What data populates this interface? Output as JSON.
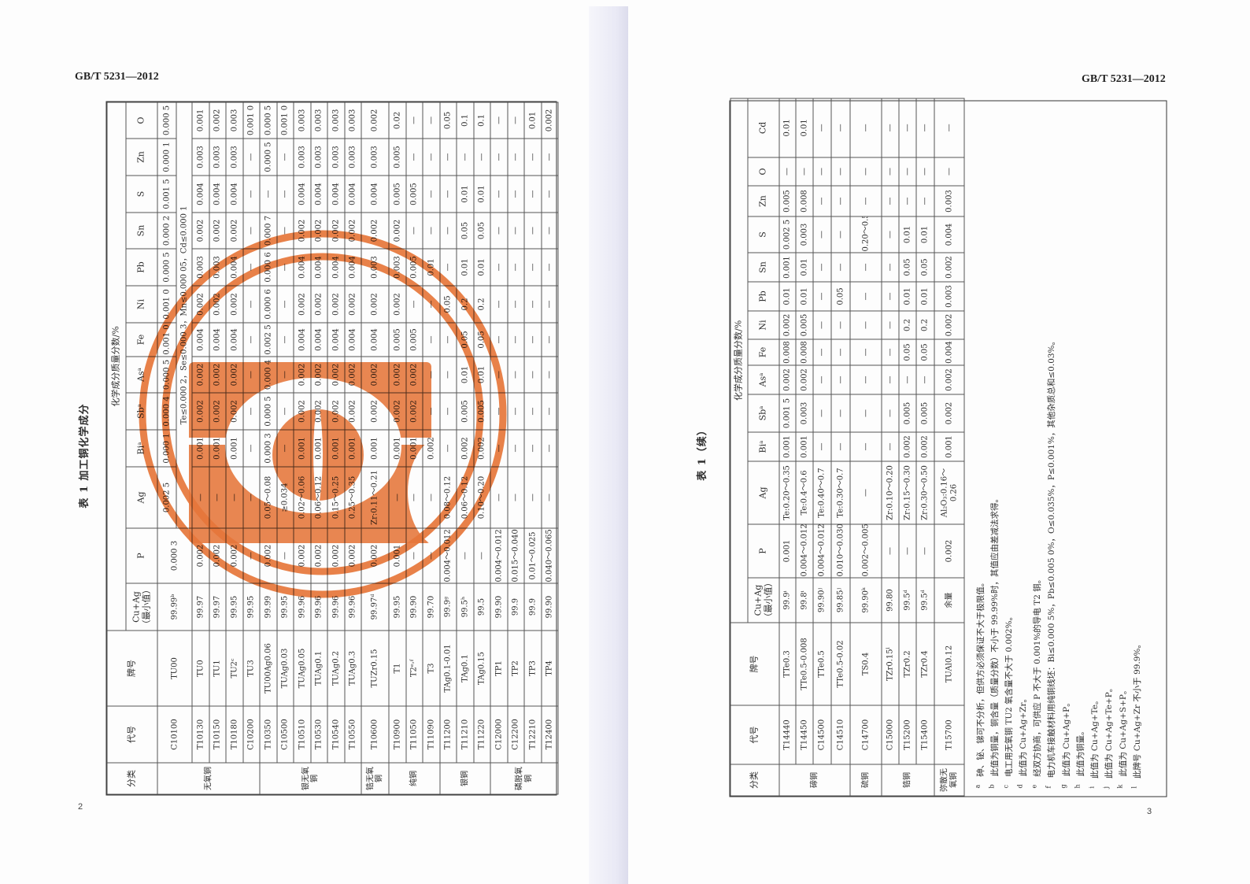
{
  "left_page": {
    "standard": "GB/T 5231—2012",
    "page_number": "2",
    "table_title": "表 1  加工铜化学成分"
  },
  "right_page": {
    "standard": "GB/T 5231—2012",
    "page_number": "3",
    "table_title": "表 1（续）"
  },
  "stamp": {
    "color": "#e8773a"
  },
  "left_table": {
    "headers": {
      "category": "分类",
      "code": "代号",
      "grade": "牌号",
      "cu_ag": "Cu+Ag（最小值）",
      "group": "化学成分质量分数/%",
      "elements": [
        "P",
        "Ag",
        "Biᵃ",
        "Sbᵃ",
        "Asᵃ",
        "Fe",
        "Ni",
        "Pb",
        "Sn",
        "S",
        "Zn",
        "O"
      ]
    },
    "groups": [
      {
        "category": "无氧铜",
        "rows": [
          [
            "C10100",
            "TU00",
            "99.99ᵇ",
            "0.000 3",
            "0.002 5",
            "0.000 1",
            "0.000 4",
            "0.000 5",
            "0.001 0",
            "0.001 0",
            "0.000 5",
            "0.000 2",
            "0.001 5",
            "0.000 1",
            "0.000 5"
          ],
          [
            "T10130",
            "TU0",
            "99.97",
            "0.002",
            "—",
            "0.001",
            "0.002",
            "0.002",
            "0.004",
            "0.002",
            "0.003",
            "0.002",
            "0.004",
            "0.003",
            "0.001"
          ],
          [
            "T10150",
            "TU1",
            "99.97",
            "0.002",
            "—",
            "0.001",
            "0.002",
            "0.002",
            "0.004",
            "0.002",
            "0.003",
            "0.002",
            "0.004",
            "0.003",
            "0.002"
          ],
          [
            "T10180",
            "TU2ᶜ",
            "99.95",
            "0.002",
            "—",
            "0.001",
            "0.002",
            "0.002",
            "0.004",
            "0.002",
            "0.004",
            "0.002",
            "0.004",
            "0.003",
            "0.003"
          ],
          [
            "C10200",
            "TU3",
            "99.95",
            "—",
            "—",
            "—",
            "—",
            "—",
            "—",
            "—",
            "—",
            "—",
            "—",
            "—",
            "0.001 0"
          ]
        ],
        "extra": "Te≤0.000 2，Se≤0.000 3，Mn≤0.000 05，Cd≤0.000 1"
      },
      {
        "category": "银无氧铜",
        "rows": [
          [
            "T10350",
            "TU00Ag0.06",
            "99.99",
            "0.002",
            "0.05～0.08",
            "0.000 3",
            "0.000 5",
            "0.000 4",
            "0.002 5",
            "0.000 6",
            "0.000 6",
            "0.000 7",
            "—",
            "0.000 5",
            "0.000 5"
          ],
          [
            "C10500",
            "TUAg0.03",
            "99.95",
            "—",
            "≥0.034",
            "—",
            "—",
            "—",
            "—",
            "—",
            "—",
            "—",
            "—",
            "—",
            "0.001 0"
          ],
          [
            "T10510",
            "TUAg0.05",
            "99.96",
            "0.002",
            "0.02～0.06",
            "0.001",
            "0.002",
            "0.002",
            "0.004",
            "0.002",
            "0.004",
            "0.002",
            "0.004",
            "0.003",
            "0.003"
          ],
          [
            "T10530",
            "TUAg0.1",
            "99.96",
            "0.002",
            "0.06～0.12",
            "0.001",
            "0.002",
            "0.002",
            "0.004",
            "0.002",
            "0.004",
            "0.002",
            "0.004",
            "0.003",
            "0.003"
          ],
          [
            "T10540",
            "TUAg0.2",
            "99.96",
            "0.002",
            "0.15～0.25",
            "0.001",
            "0.002",
            "0.002",
            "0.004",
            "0.002",
            "0.004",
            "0.002",
            "0.004",
            "0.003",
            "0.003"
          ],
          [
            "T10550",
            "TUAg0.3",
            "99.96",
            "0.002",
            "0.25～0.35",
            "0.001",
            "0.002",
            "0.002",
            "0.004",
            "0.002",
            "0.004",
            "0.002",
            "0.004",
            "0.003",
            "0.003"
          ]
        ]
      },
      {
        "category": "锆无氧铜",
        "rows": [
          [
            "T10600",
            "TUZr0.15",
            "99.97ᵈ",
            "0.002",
            "Zr:0.11～0.21",
            "0.001",
            "0.002",
            "0.002",
            "0.004",
            "0.002",
            "0.003",
            "0.002",
            "0.004",
            "0.003",
            "0.002"
          ]
        ]
      },
      {
        "category": "纯铜",
        "rows": [
          [
            "T10900",
            "T1",
            "99.95",
            "0.001",
            "—",
            "0.001",
            "0.002",
            "0.002",
            "0.005",
            "0.002",
            "0.003",
            "0.002",
            "0.005",
            "0.005",
            "0.02"
          ],
          [
            "T11050",
            "T2ᵉ˒ᶠ",
            "99.90",
            "—",
            "—",
            "0.001",
            "0.002",
            "0.002",
            "0.005",
            "—",
            "0.005",
            "—",
            "0.005",
            "—",
            "—"
          ],
          [
            "T11090",
            "T3",
            "99.70",
            "—",
            "—",
            "0.002",
            "—",
            "—",
            "—",
            "—",
            "0.01",
            "—",
            "—",
            "—",
            "—"
          ]
        ]
      },
      {
        "category": "银铜",
        "rows": [
          [
            "T11200",
            "TAg0.1-0.01",
            "99.9ᵍ",
            "0.004～0.012",
            "0.08～0.12",
            "—",
            "—",
            "—",
            "—",
            "0.05",
            "—",
            "—",
            "—",
            "—",
            "0.05"
          ],
          [
            "T11210",
            "TAg0.1",
            "99.5ʰ",
            "—",
            "0.06～0.12",
            "0.002",
            "0.005",
            "0.01",
            "0.05",
            "0.2",
            "0.01",
            "0.05",
            "0.01",
            "—",
            "0.1"
          ],
          [
            "T11220",
            "TAg0.15",
            "99.5",
            "—",
            "0.10～0.20",
            "0.002",
            "0.005",
            "0.01",
            "0.05",
            "0.2",
            "0.01",
            "0.05",
            "0.01",
            "—",
            "0.1"
          ]
        ]
      },
      {
        "category": "磷脱氧铜",
        "rows": [
          [
            "C12000",
            "TP1",
            "99.90",
            "0.004～0.012",
            "—",
            "—",
            "—",
            "—",
            "—",
            "—",
            "—",
            "—",
            "—",
            "—",
            "—"
          ],
          [
            "C12200",
            "TP2",
            "99.9",
            "0.015～0.040",
            "—",
            "—",
            "—",
            "—",
            "—",
            "—",
            "—",
            "—",
            "—",
            "—",
            "—"
          ],
          [
            "T12210",
            "TP3",
            "99.9",
            "0.01～0.025",
            "—",
            "—",
            "—",
            "—",
            "—",
            "—",
            "—",
            "—",
            "—",
            "—",
            "0.01"
          ],
          [
            "T12400",
            "TP4",
            "99.90",
            "0.040～0.065",
            "—",
            "—",
            "—",
            "—",
            "—",
            "—",
            "—",
            "—",
            "—",
            "—",
            "0.002"
          ]
        ]
      }
    ]
  },
  "right_table": {
    "headers": {
      "category": "分类",
      "code": "代号",
      "grade": "牌号",
      "cu_ag": "Cu+Ag（最小值）",
      "group": "化学成分质量分数/%",
      "elements": [
        "P",
        "Ag",
        "Biᵃ",
        "Sbᵃ",
        "Asᵃ",
        "Fe",
        "Ni",
        "Pb",
        "Sn",
        "S",
        "Zn",
        "O",
        "Cd"
      ]
    },
    "groups": [
      {
        "category": "碲铜",
        "rows": [
          [
            "T14440",
            "TTe0.3",
            "99.9ⁱ",
            "0.001",
            "Te:0.20～0.35",
            "0.001",
            "0.001 5",
            "0.002",
            "0.008",
            "0.002",
            "0.01",
            "0.001",
            "0.002 5",
            "0.005",
            "—",
            "0.01"
          ],
          [
            "T14450",
            "TTe0.5-0.008",
            "99.8ⁱ",
            "0.004～0.012",
            "Te:0.4～0.6",
            "0.001",
            "0.003",
            "0.002",
            "0.008",
            "0.005",
            "0.01",
            "0.01",
            "0.003",
            "0.008",
            "—",
            "0.01"
          ],
          [
            "C14500",
            "TTe0.5",
            "99.90ʲ",
            "0.004～0.012",
            "Te:0.40～0.7",
            "—",
            "—",
            "—",
            "—",
            "—",
            "—",
            "—",
            "—",
            "—",
            "—",
            "—"
          ],
          [
            "C14510",
            "TTe0.5-0.02",
            "99.85ʲ",
            "0.010～0.030",
            "Te:0.30～0.7",
            "—",
            "—",
            "—",
            "—",
            "—",
            "0.05",
            "—",
            "—",
            "—",
            "—",
            "—"
          ]
        ]
      },
      {
        "category": "硫铜",
        "rows": [
          [
            "C14700",
            "TS0.4",
            "99.90ᵏ",
            "0.002～0.005",
            "—",
            "—",
            "—",
            "—",
            "—",
            "—",
            "—",
            "—",
            "0.20～0.50",
            "—",
            "—",
            "—"
          ]
        ]
      },
      {
        "category": "锆铜",
        "rows": [
          [
            "C15000",
            "TZr0.15ˡ",
            "99.80",
            "—",
            "Zr:0.10～0.20",
            "—",
            "—",
            "—",
            "—",
            "—",
            "—",
            "—",
            "—",
            "—",
            "—",
            "—"
          ],
          [
            "T15200",
            "TZr0.2",
            "99.5ᵈ",
            "—",
            "Zr:0.15～0.30",
            "0.002",
            "0.005",
            "—",
            "0.05",
            "0.2",
            "0.01",
            "0.05",
            "0.01",
            "—",
            "—",
            "—"
          ],
          [
            "T15400",
            "TZr0.4",
            "99.5ᵈ",
            "—",
            "Zr:0.30～0.50",
            "0.002",
            "0.005",
            "—",
            "0.05",
            "0.2",
            "0.01",
            "0.05",
            "0.01",
            "—",
            "—",
            "—"
          ]
        ]
      },
      {
        "category": "弥散无氧铜",
        "rows": [
          [
            "T15700",
            "TUAl0.12",
            "余量",
            "0.002",
            "Al₂O₃:0.16～0.26",
            "0.001",
            "0.002",
            "0.002",
            "0.004",
            "0.002",
            "0.003",
            "0.002",
            "0.004",
            "0.003",
            "—",
            "—"
          ]
        ]
      }
    ]
  },
  "footnotes": [
    {
      "mark": "a",
      "text": "砷、铋、锑可不分析，但供方必须保证不大于极限值。"
    },
    {
      "mark": "b",
      "text": "此值为铜量，铜含量（质量分数）不小于 99.99%时，其值应由差减法求得。"
    },
    {
      "mark": "c",
      "text": "电工用无氧铜 TU2 氧含量不大于 0.002%。"
    },
    {
      "mark": "d",
      "text": "此值为 Cu+Ag+Zr。"
    },
    {
      "mark": "e",
      "text": "经双方协商，可供应 P 不大于 0.001%的导电 T2 铜。"
    },
    {
      "mark": "f",
      "text": "电力机车接触材料用纯铜线坯：Bi≤0.000 5%，Pb≤0.005 0%，O≤0.035%，P≤0.001%，其他杂质总和≤0.03%。"
    },
    {
      "mark": "g",
      "text": "此值为 Cu+Ag+P。"
    },
    {
      "mark": "h",
      "text": "此值为铜量。"
    },
    {
      "mark": "i",
      "text": "此值为 Cu+Ag+Te。"
    },
    {
      "mark": "j",
      "text": "此值为 Cu+Ag+Te+P。"
    },
    {
      "mark": "k",
      "text": "此值为 Cu+Ag+S+P。"
    },
    {
      "mark": "l",
      "text": "此牌号 Cu+Ag+Zr 不小于 99.9%。"
    }
  ]
}
